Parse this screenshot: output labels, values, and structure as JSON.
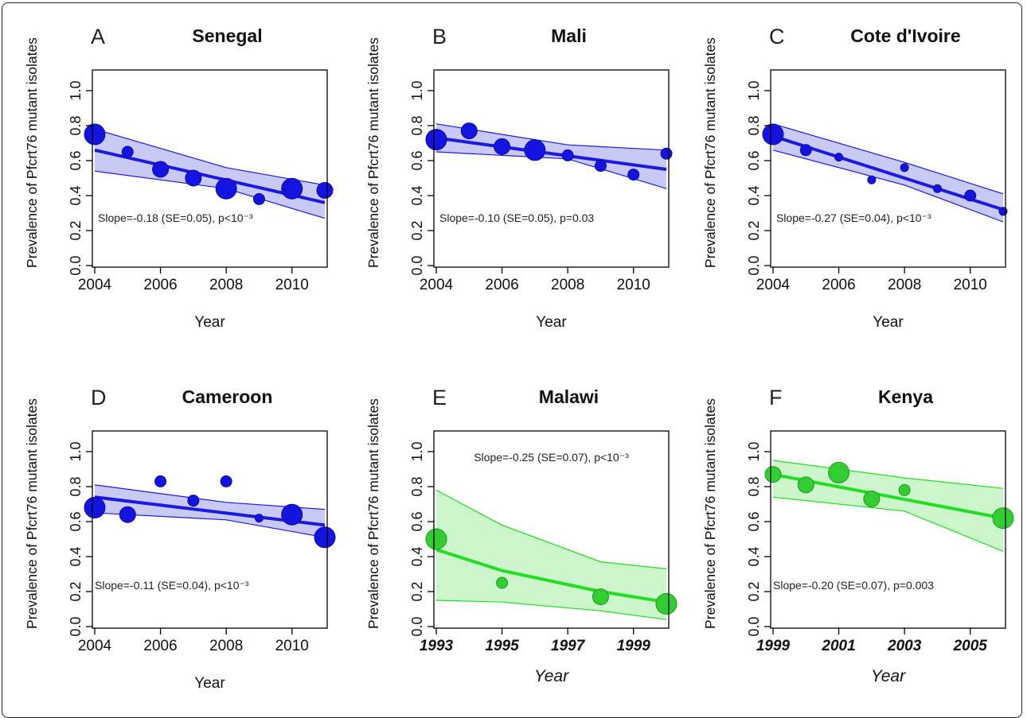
{
  "figure": {
    "y_axis_label": "Prevalence of Pfcrt76 mutant isolates",
    "x_axis_label": "Year",
    "colors": {
      "blue_fill": "#c9c9f5",
      "blue_line": "#1a1ae0",
      "blue_point": "#1414e0",
      "green_fill": "#ccf5cc",
      "green_line": "#22dd22",
      "green_point": "#33cc33"
    }
  },
  "chart_data": [
    {
      "type": "scatter",
      "panel": "A",
      "title": "Senegal",
      "color": "blue",
      "xlabel": "Year",
      "ylabel": "Prevalence of Pfcrt76 mutant isolates",
      "xlim": [
        2004,
        2011
      ],
      "ylim": [
        0,
        1
      ],
      "xticks": [
        "2004",
        "2006",
        "2008",
        "2010"
      ],
      "yticks": [
        "0.0",
        "0.2",
        "0.4",
        "0.6",
        "0.8",
        "1.0"
      ],
      "points": [
        {
          "x": 2004,
          "y": 0.75,
          "size": "large"
        },
        {
          "x": 2005,
          "y": 0.65,
          "size": "small"
        },
        {
          "x": 2006,
          "y": 0.55,
          "size": "medium"
        },
        {
          "x": 2007,
          "y": 0.5,
          "size": "medium"
        },
        {
          "x": 2008,
          "y": 0.44,
          "size": "large"
        },
        {
          "x": 2009,
          "y": 0.38,
          "size": "small"
        },
        {
          "x": 2010,
          "y": 0.44,
          "size": "large"
        },
        {
          "x": 2011,
          "y": 0.43,
          "size": "medium"
        }
      ],
      "fit": {
        "x": [
          2004,
          2011
        ],
        "y": [
          0.66,
          0.36
        ]
      },
      "ci_upper": {
        "x": [
          2004,
          2008,
          2011
        ],
        "y": [
          0.78,
          0.56,
          0.46
        ]
      },
      "ci_lower": {
        "x": [
          2004,
          2008,
          2011
        ],
        "y": [
          0.54,
          0.44,
          0.27
        ]
      },
      "annotation": "Slope=-0.18 (SE=0.05), p<10⁻³",
      "annotation_pos": "bottom-left",
      "italic_ticks": false
    },
    {
      "type": "scatter",
      "panel": "B",
      "title": "Mali",
      "color": "blue",
      "xlabel": "Year",
      "ylabel": "Prevalence of Pfcrt76 mutant isolates",
      "xlim": [
        2004,
        2011
      ],
      "ylim": [
        0,
        1
      ],
      "xticks": [
        "2004",
        "2006",
        "2008",
        "2010"
      ],
      "yticks": [
        "0.0",
        "0.2",
        "0.4",
        "0.6",
        "0.8",
        "1.0"
      ],
      "points": [
        {
          "x": 2004,
          "y": 0.72,
          "size": "large"
        },
        {
          "x": 2005,
          "y": 0.77,
          "size": "medium"
        },
        {
          "x": 2006,
          "y": 0.68,
          "size": "medium"
        },
        {
          "x": 2007,
          "y": 0.66,
          "size": "large"
        },
        {
          "x": 2008,
          "y": 0.63,
          "size": "small"
        },
        {
          "x": 2009,
          "y": 0.57,
          "size": "small"
        },
        {
          "x": 2010,
          "y": 0.52,
          "size": "small"
        },
        {
          "x": 2011,
          "y": 0.64,
          "size": "small"
        }
      ],
      "fit": {
        "x": [
          2004,
          2011
        ],
        "y": [
          0.73,
          0.55
        ]
      },
      "ci_upper": {
        "x": [
          2004,
          2008,
          2011
        ],
        "y": [
          0.81,
          0.69,
          0.66
        ]
      },
      "ci_lower": {
        "x": [
          2004,
          2008,
          2011
        ],
        "y": [
          0.65,
          0.61,
          0.44
        ]
      },
      "annotation": "Slope=-0.10 (SE=0.05), p=0.03",
      "annotation_pos": "bottom-left",
      "italic_ticks": false
    },
    {
      "type": "scatter",
      "panel": "C",
      "title": "Cote d'Ivoire",
      "color": "blue",
      "xlabel": "Year",
      "ylabel": "Prevalence of Pfcrt76 mutant isolates",
      "xlim": [
        2004,
        2011
      ],
      "ylim": [
        0,
        1
      ],
      "xticks": [
        "2004",
        "2006",
        "2008",
        "2010"
      ],
      "yticks": [
        "0.0",
        "0.2",
        "0.4",
        "0.6",
        "0.8",
        "1.0"
      ],
      "points": [
        {
          "x": 2004,
          "y": 0.75,
          "size": "large"
        },
        {
          "x": 2005,
          "y": 0.66,
          "size": "small"
        },
        {
          "x": 2006,
          "y": 0.62,
          "size": "tiny"
        },
        {
          "x": 2007,
          "y": 0.49,
          "size": "tiny"
        },
        {
          "x": 2008,
          "y": 0.56,
          "size": "tiny"
        },
        {
          "x": 2009,
          "y": 0.44,
          "size": "tiny"
        },
        {
          "x": 2010,
          "y": 0.4,
          "size": "small"
        },
        {
          "x": 2011,
          "y": 0.31,
          "size": "tiny"
        }
      ],
      "fit": {
        "x": [
          2004,
          2011
        ],
        "y": [
          0.74,
          0.32
        ]
      },
      "ci_upper": {
        "x": [
          2004,
          2008,
          2011
        ],
        "y": [
          0.81,
          0.59,
          0.41
        ]
      },
      "ci_lower": {
        "x": [
          2004,
          2008,
          2011
        ],
        "y": [
          0.66,
          0.46,
          0.25
        ]
      },
      "annotation": "Slope=-0.27 (SE=0.04), p<10⁻³",
      "annotation_pos": "bottom-left",
      "italic_ticks": false
    },
    {
      "type": "scatter",
      "panel": "D",
      "title": "Cameroon",
      "color": "blue",
      "xlabel": "Year",
      "ylabel": "Prevalence of Pfcrt76 mutant isolates",
      "xlim": [
        2004,
        2011
      ],
      "ylim": [
        0,
        1
      ],
      "xticks": [
        "2004",
        "2006",
        "2008",
        "2010"
      ],
      "yticks": [
        "0.0",
        "0.2",
        "0.4",
        "0.6",
        "0.8",
        "1.0"
      ],
      "points": [
        {
          "x": 2004,
          "y": 0.68,
          "size": "large"
        },
        {
          "x": 2005,
          "y": 0.64,
          "size": "medium"
        },
        {
          "x": 2006,
          "y": 0.83,
          "size": "small"
        },
        {
          "x": 2007,
          "y": 0.72,
          "size": "small"
        },
        {
          "x": 2008,
          "y": 0.83,
          "size": "small"
        },
        {
          "x": 2009,
          "y": 0.62,
          "size": "tiny"
        },
        {
          "x": 2010,
          "y": 0.64,
          "size": "large"
        },
        {
          "x": 2011,
          "y": 0.51,
          "size": "large"
        }
      ],
      "fit": {
        "x": [
          2004,
          2011
        ],
        "y": [
          0.74,
          0.58
        ]
      },
      "ci_upper": {
        "x": [
          2004,
          2008,
          2011
        ],
        "y": [
          0.81,
          0.71,
          0.67
        ]
      },
      "ci_lower": {
        "x": [
          2004,
          2008,
          2011
        ],
        "y": [
          0.65,
          0.61,
          0.51
        ]
      },
      "annotation": "Slope=-0.11 (SE=0.04), p<10⁻³",
      "annotation_pos": "bottom-left",
      "italic_ticks": false
    },
    {
      "type": "scatter",
      "panel": "E",
      "title": "Malawi",
      "color": "green",
      "xlabel": "Year",
      "ylabel": "Prevalence of Pfcrt76 mutant isolates",
      "xlim": [
        1993,
        2000
      ],
      "ylim": [
        0,
        1
      ],
      "xticks": [
        "1993",
        "1995",
        "1997",
        "1999"
      ],
      "yticks": [
        "0.0",
        "0.2",
        "0.4",
        "0.6",
        "0.8",
        "1.0"
      ],
      "points": [
        {
          "x": 1993,
          "y": 0.5,
          "size": "large"
        },
        {
          "x": 1995,
          "y": 0.25,
          "size": "small"
        },
        {
          "x": 1998,
          "y": 0.17,
          "size": "medium"
        },
        {
          "x": 2000,
          "y": 0.13,
          "size": "large"
        }
      ],
      "fit": {
        "x": [
          1993,
          1995,
          1998,
          2000
        ],
        "y": [
          0.44,
          0.32,
          0.2,
          0.14
        ]
      },
      "ci_upper": {
        "x": [
          1993,
          1995,
          1998,
          2000
        ],
        "y": [
          0.78,
          0.58,
          0.37,
          0.33
        ]
      },
      "ci_lower": {
        "x": [
          1993,
          1995,
          1998,
          2000
        ],
        "y": [
          0.15,
          0.14,
          0.09,
          0.04
        ]
      },
      "annotation": "Slope=-0.25 (SE=0.07), p<10⁻³",
      "annotation_pos": "top-center",
      "italic_ticks": true
    },
    {
      "type": "scatter",
      "panel": "F",
      "title": "Kenya",
      "color": "green",
      "xlabel": "Year",
      "ylabel": "Prevalence of Pfcrt76 mutant isolates",
      "xlim": [
        1999,
        2006
      ],
      "ylim": [
        0,
        1
      ],
      "xticks": [
        "1999",
        "2001",
        "2003",
        "2005"
      ],
      "yticks": [
        "0.0",
        "0.2",
        "0.4",
        "0.6",
        "0.8",
        "1.0"
      ],
      "points": [
        {
          "x": 1999,
          "y": 0.87,
          "size": "medium"
        },
        {
          "x": 2000,
          "y": 0.81,
          "size": "medium"
        },
        {
          "x": 2001,
          "y": 0.88,
          "size": "large"
        },
        {
          "x": 2002,
          "y": 0.73,
          "size": "medium"
        },
        {
          "x": 2003,
          "y": 0.78,
          "size": "small"
        },
        {
          "x": 2006,
          "y": 0.62,
          "size": "large"
        }
      ],
      "fit": {
        "x": [
          1999,
          2006
        ],
        "y": [
          0.87,
          0.62
        ]
      },
      "ci_upper": {
        "x": [
          1999,
          2003,
          2006
        ],
        "y": [
          0.95,
          0.85,
          0.79
        ]
      },
      "ci_lower": {
        "x": [
          1999,
          2003,
          2006
        ],
        "y": [
          0.74,
          0.66,
          0.43
        ]
      },
      "annotation": "Slope=-0.20 (SE=0.07), p=0.003",
      "annotation_pos": "bottom-left",
      "italic_ticks": true
    }
  ]
}
